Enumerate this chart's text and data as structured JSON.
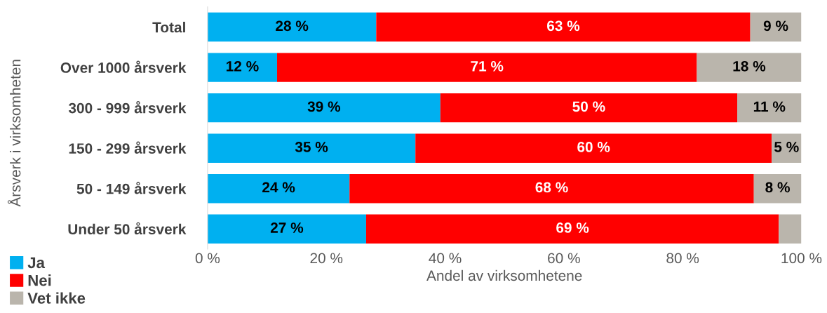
{
  "chart_data": {
    "type": "bar",
    "orientation": "horizontal",
    "stacked": true,
    "categories": [
      "Total",
      "Over 1000 årsverk",
      "300 - 999 årsverk",
      "150 - 299 årsverk",
      "50 - 149 årsverk",
      "Under 50 årsverk"
    ],
    "series": [
      {
        "name": "Ja",
        "color": "#00b0f0",
        "values": [
          28.4,
          11.7,
          39.2,
          35.0,
          23.9,
          26.7
        ],
        "value_labels": [
          "28 %",
          "12 %",
          "39 %",
          "35 %",
          "24 %",
          "27 %"
        ]
      },
      {
        "name": "Nei",
        "color": "#ff0000",
        "values": [
          63.0,
          70.7,
          50.0,
          60.0,
          68.1,
          69.5
        ],
        "value_labels": [
          "63 %",
          "71 %",
          "50 %",
          "60 %",
          "68 %",
          "69 %"
        ]
      },
      {
        "name": "Vet ikke",
        "color": "#bab5ac",
        "values": [
          8.6,
          17.6,
          10.8,
          5.0,
          8.0,
          3.8
        ],
        "value_labels": [
          "9 %",
          "18 %",
          "11 %",
          "5 %",
          "8 %",
          null
        ]
      }
    ],
    "xlim": [
      0,
      100
    ],
    "xticks": [
      {
        "value": 0,
        "label": "0 %"
      },
      {
        "value": 20,
        "label": "20 %"
      },
      {
        "value": 40,
        "label": "40 %"
      },
      {
        "value": 60,
        "label": "60 %"
      },
      {
        "value": 80,
        "label": "80 %"
      },
      {
        "value": 100,
        "label": "100 %"
      }
    ],
    "xlabel": "Andel av virksomhetene",
    "ylabel": "Årsverk i virksomheten",
    "legend": "bottom left",
    "grid": false
  }
}
